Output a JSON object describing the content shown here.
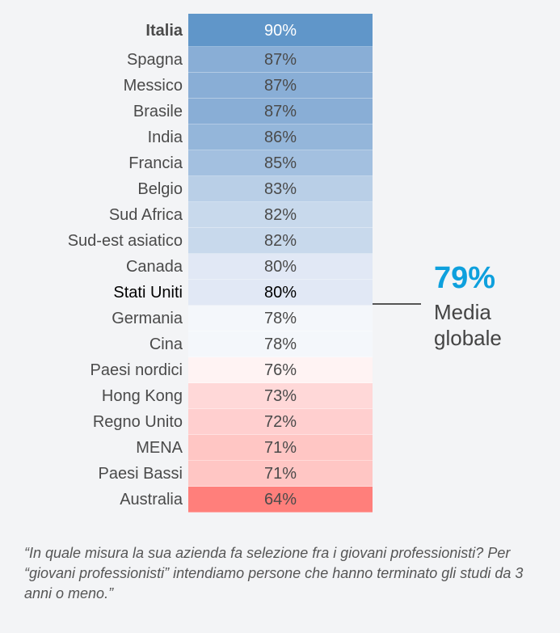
{
  "chart_data": {
    "type": "table",
    "categories": [
      "Italia",
      "Spagna",
      "Messico",
      "Brasile",
      "India",
      "Francia",
      "Belgio",
      "Sud Africa",
      "Sud-est asiatico",
      "Canada",
      "Stati Uniti",
      "Germania",
      "Cina",
      "Paesi nordici",
      "Hong Kong",
      "Regno Unito",
      "MENA",
      "Paesi Bassi",
      "Australia"
    ],
    "values": [
      90,
      87,
      87,
      87,
      86,
      85,
      83,
      82,
      82,
      80,
      80,
      78,
      78,
      76,
      73,
      72,
      71,
      71,
      64
    ],
    "labels": [
      "90%",
      "87%",
      "87%",
      "87%",
      "86%",
      "85%",
      "83%",
      "82%",
      "82%",
      "80%",
      "80%",
      "78%",
      "78%",
      "76%",
      "73%",
      "72%",
      "71%",
      "71%",
      "64%"
    ],
    "colors": [
      "#6096c9",
      "#89aed6",
      "#89aed6",
      "#89aed6",
      "#94b6da",
      "#a3c0e0",
      "#b9cfe7",
      "#c8d9ec",
      "#c8d9ec",
      "#e1e8f5",
      "#e1e8f5",
      "#f4f7fb",
      "#f4f7fb",
      "#fff3f3",
      "#ffd8d8",
      "#ffcfcf",
      "#ffc6c4",
      "#ffc6c4",
      "#ff7f7b"
    ],
    "highlight": [
      "Italia",
      "Stati Uniti"
    ],
    "average": {
      "value": "79%",
      "label_line1": "Media",
      "label_line2": "globale",
      "color": "#0ea0dd"
    }
  },
  "note": "“In quale misura la sua azienda fa selezione fra i giovani professionisti? Per “giovani professionisti” intendiamo persone che hanno terminato gli studi da 3 anni o meno.”"
}
